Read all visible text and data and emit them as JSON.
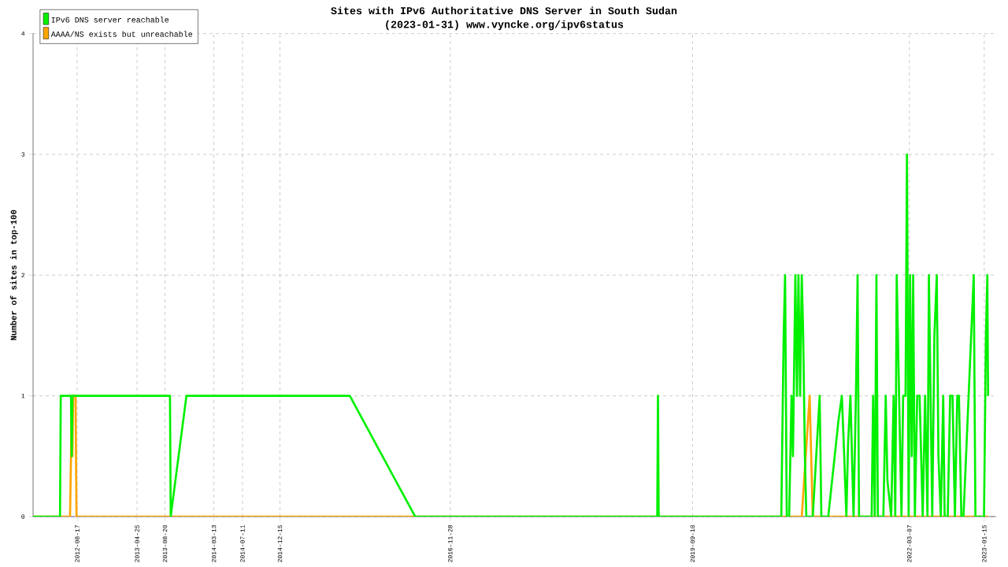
{
  "chart_data": {
    "type": "line",
    "title": "Sites with IPv6 Authoritative DNS Server in South Sudan",
    "subtitle": "(2023-01-31) www.vyncke.org/ipv6status",
    "ylabel": "Number of sites in top-100",
    "xlim": [
      "2012-02-14",
      "2023-03-05"
    ],
    "ylim": [
      0,
      4
    ],
    "xticks": [
      "2012-08-17",
      "2013-04-25",
      "2013-08-20",
      "2014-03-13",
      "2014-07-11",
      "2014-12-15",
      "2016-11-28",
      "2019-09-10",
      "2022-03-07",
      "2023-01-15"
    ],
    "yticks": [
      0,
      1,
      2,
      3,
      4
    ],
    "grid": true,
    "legend": "top left",
    "line_style": "solid",
    "series": [
      {
        "name": "IPv6 DNS server reachable",
        "color": "#00f000",
        "x": [
          "2012-02-14",
          "2012-06-06",
          "2012-06-09",
          "2012-07-22",
          "2012-07-25",
          "2012-07-28",
          "2013-09-10",
          "2013-09-13",
          "2013-11-18",
          "2015-10-04",
          "2016-07-04",
          "2019-04-15",
          "2019-04-18",
          "2019-04-21",
          "2020-09-16",
          "2020-09-26",
          "2020-10-02",
          "2020-10-09",
          "2020-10-19",
          "2020-10-29",
          "2020-11-04",
          "2020-11-14",
          "2020-11-21",
          "2020-11-27",
          "2020-12-04",
          "2020-12-11",
          "2020-12-17",
          "2020-12-24",
          "2020-12-30",
          "2021-01-26",
          "2021-02-24",
          "2021-03-03",
          "2021-04-01",
          "2021-04-28",
          "2021-05-14",
          "2021-05-28",
          "2021-06-07",
          "2021-06-16",
          "2021-06-23",
          "2021-07-03",
          "2021-07-16",
          "2021-07-26",
          "2021-08-02",
          "2021-08-08",
          "2021-08-15",
          "2021-09-30",
          "2021-10-06",
          "2021-10-13",
          "2021-10-20",
          "2021-10-26",
          "2021-11-18",
          "2021-11-28",
          "2021-12-05",
          "2021-12-21",
          "2021-12-31",
          "2022-01-07",
          "2022-01-13",
          "2022-01-23",
          "2022-02-02",
          "2022-02-09",
          "2022-02-19",
          "2022-02-25",
          "2022-03-04",
          "2022-03-10",
          "2022-03-17",
          "2022-03-23",
          "2022-03-30",
          "2022-04-09",
          "2022-04-19",
          "2022-05-02",
          "2022-05-12",
          "2022-05-22",
          "2022-05-28",
          "2022-06-04",
          "2022-06-11",
          "2022-06-20",
          "2022-06-30",
          "2022-07-07",
          "2022-07-17",
          "2022-07-27",
          "2022-08-02",
          "2022-08-15",
          "2022-08-25",
          "2022-09-04",
          "2022-09-14",
          "2022-09-24",
          "2022-10-01",
          "2022-10-11",
          "2022-10-20",
          "2022-12-02",
          "2022-12-09",
          "2022-12-19",
          "2023-01-14",
          "2023-01-22",
          "2023-01-28",
          "2023-01-31"
        ],
        "values": [
          0,
          0,
          1,
          1,
          0.5,
          1,
          1,
          0,
          1,
          1,
          0,
          0,
          1,
          0,
          0,
          1.5,
          2,
          0,
          0,
          1,
          0.5,
          2,
          1,
          2,
          1,
          2,
          1.5,
          0.5,
          0,
          0,
          1,
          0,
          0,
          0.5,
          0.8,
          1,
          0.5,
          0,
          0.6,
          1,
          0,
          1,
          2,
          0,
          0,
          0,
          1,
          0,
          2,
          0,
          0,
          1,
          0.3,
          0,
          1,
          0,
          2,
          1,
          0,
          1,
          1,
          3,
          0,
          2,
          0.5,
          2,
          0,
          1,
          1,
          0,
          1,
          0,
          2,
          1,
          0,
          1.5,
          2,
          0.5,
          0,
          1,
          0,
          0,
          1,
          1,
          0,
          1,
          1,
          0,
          0,
          2,
          0,
          0,
          0,
          1.5,
          2,
          1
        ]
      },
      {
        "name": "AAAA/NS exists but unreachable",
        "color": "#ffa500",
        "x": [
          "2012-02-14",
          "2012-07-18",
          "2012-07-22",
          "2012-07-25",
          "2012-07-28",
          "2012-07-31",
          "2012-08-10",
          "2012-08-14",
          "2020-12-11",
          "2021-01-13",
          "2021-01-26",
          "2023-01-31"
        ],
        "values": [
          0,
          0,
          0.5,
          1,
          0.5,
          1,
          1,
          0,
          0,
          1,
          0,
          0
        ]
      }
    ]
  }
}
